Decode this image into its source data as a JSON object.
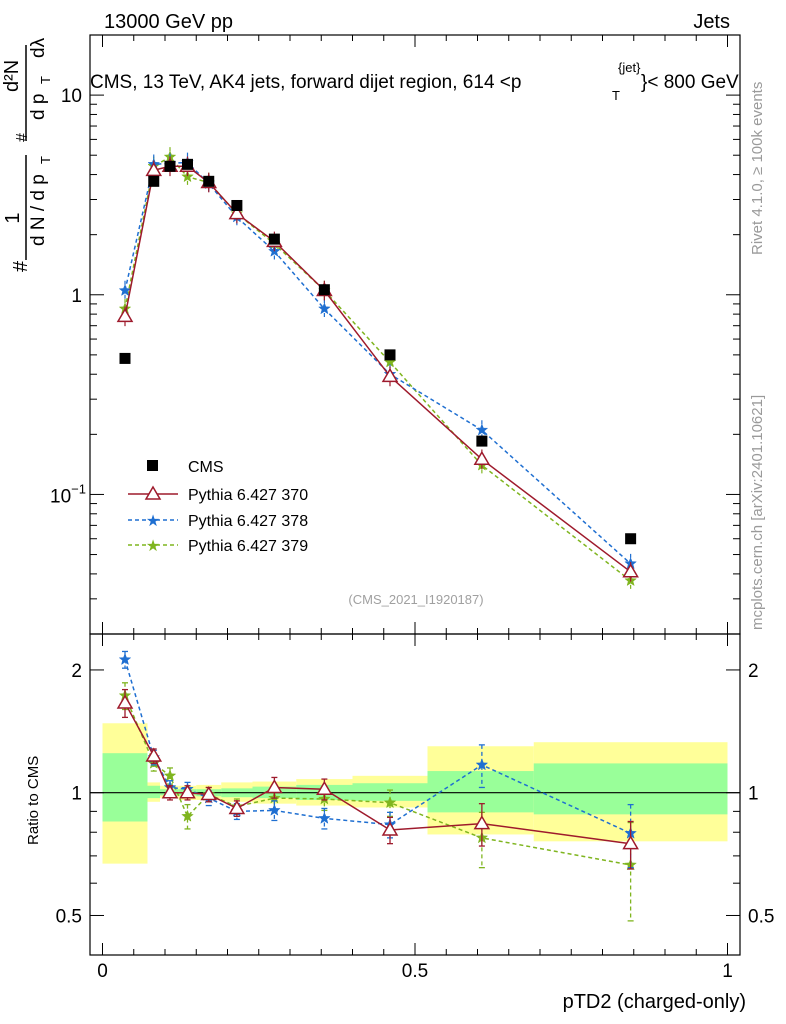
{
  "header": {
    "left": "13000 GeV pp",
    "right": "Jets",
    "title_main": "CMS, 13 TeV, AK4 jets, forward dijet region, 614 <p",
    "title_sup": "{jet}",
    "title_sub": "T",
    "title_end": "}< 800 GeV",
    "watermark": "(CMS_2021_I1920187)"
  },
  "side": {
    "rivet": "Rivet 4.1.0, ≥ 100k events",
    "mcplots": "mcplots.cern.ch [arXiv:2401.10621]"
  },
  "colors": {
    "data": "#000000",
    "p370": "#9e1a2c",
    "p378": "#1f6fd1",
    "p379": "#7fb51f",
    "band_inner": "#99ff99",
    "band_outer": "#ffff99"
  },
  "chart_data": [
    {
      "type": "scatter",
      "panel": "main",
      "yscale": "log",
      "xlim": [
        -0.02,
        1.02
      ],
      "ylim": [
        0.02,
        20
      ],
      "ylabel": "1/(dN/dpT) d²N/(dpT dλ)",
      "ylabel_pieces": {
        "frac1_num": "1",
        "frac1_den": "d N / d p",
        "frac1_sub": "T",
        "frac2_num": "d²N",
        "frac2_den": "d p",
        "frac2_sub": "T",
        "dlambda": "dλ",
        "hash": "#"
      },
      "yticks": [
        {
          "v": 0.1,
          "base": "10",
          "exp": "−1"
        },
        {
          "v": 1,
          "base": "1",
          "exp": ""
        },
        {
          "v": 10,
          "base": "10",
          "exp": ""
        }
      ],
      "series": [
        {
          "name": "CMS",
          "key": "data",
          "x": [
            0.036,
            0.082,
            0.108,
            0.136,
            0.17,
            0.215,
            0.275,
            0.355,
            0.46,
            0.607,
            0.845
          ],
          "y": [
            0.48,
            3.7,
            4.4,
            4.5,
            3.7,
            2.8,
            1.9,
            1.06,
            0.5,
            0.185,
            0.06
          ]
        },
        {
          "name": "Pythia 6.427 370",
          "key": "p370",
          "x": [
            0.036,
            0.082,
            0.108,
            0.136,
            0.17,
            0.215,
            0.275,
            0.355,
            0.46,
            0.607,
            0.845
          ],
          "y": [
            0.78,
            4.2,
            4.4,
            4.4,
            3.65,
            2.55,
            1.85,
            1.05,
            0.39,
            0.15,
            0.041
          ]
        },
        {
          "name": "Pythia 6.427 378",
          "key": "p378",
          "x": [
            0.036,
            0.082,
            0.108,
            0.136,
            0.17,
            0.215,
            0.275,
            0.355,
            0.46,
            0.607,
            0.845
          ],
          "y": [
            1.05,
            4.5,
            4.55,
            4.6,
            3.6,
            2.45,
            1.65,
            0.85,
            0.4,
            0.21,
            0.045
          ]
        },
        {
          "name": "Pythia 6.427 379",
          "key": "p379",
          "x": [
            0.036,
            0.082,
            0.108,
            0.136,
            0.17,
            0.215,
            0.275,
            0.355,
            0.46,
            0.607,
            0.845
          ],
          "y": [
            0.85,
            4.4,
            4.9,
            3.9,
            3.65,
            2.55,
            1.8,
            1.05,
            0.46,
            0.14,
            0.037
          ]
        }
      ],
      "legend": [
        "CMS",
        "Pythia 6.427 370",
        "Pythia 6.427 378",
        "Pythia 6.427 379"
      ]
    },
    {
      "type": "scatter",
      "panel": "ratio",
      "yscale": "log",
      "xlim": [
        -0.02,
        1.02
      ],
      "ylim": [
        0.4,
        2.45
      ],
      "ylabel": "Ratio to CMS",
      "xlabel": "pTD2 (charged-only)",
      "xticks": [
        {
          "v": 0,
          "label": "0"
        },
        {
          "v": 0.5,
          "label": "0.5"
        },
        {
          "v": 1,
          "label": "1"
        }
      ],
      "yticks": [
        {
          "v": 0.5,
          "label": "0.5"
        },
        {
          "v": 1,
          "label": "1"
        },
        {
          "v": 2,
          "label": "2"
        }
      ],
      "bins": [
        {
          "lo": 0.0,
          "hi": 0.072,
          "inner": [
            0.85,
            1.25
          ],
          "outer": [
            0.67,
            1.48
          ]
        },
        {
          "lo": 0.072,
          "hi": 0.092,
          "inner": [
            0.97,
            1.04
          ],
          "outer": [
            0.95,
            1.06
          ]
        },
        {
          "lo": 0.092,
          "hi": 0.122,
          "inner": [
            0.985,
            1.02
          ],
          "outer": [
            0.97,
            1.04
          ]
        },
        {
          "lo": 0.122,
          "hi": 0.15,
          "inner": [
            0.985,
            1.02
          ],
          "outer": [
            0.96,
            1.04
          ]
        },
        {
          "lo": 0.15,
          "hi": 0.19,
          "inner": [
            0.98,
            1.02
          ],
          "outer": [
            0.96,
            1.045
          ]
        },
        {
          "lo": 0.19,
          "hi": 0.24,
          "inner": [
            0.975,
            1.025
          ],
          "outer": [
            0.95,
            1.06
          ]
        },
        {
          "lo": 0.24,
          "hi": 0.31,
          "inner": [
            0.97,
            1.035
          ],
          "outer": [
            0.94,
            1.065
          ]
        },
        {
          "lo": 0.31,
          "hi": 0.4,
          "inner": [
            0.96,
            1.045
          ],
          "outer": [
            0.93,
            1.08
          ]
        },
        {
          "lo": 0.4,
          "hi": 0.52,
          "inner": [
            0.955,
            1.055
          ],
          "outer": [
            0.92,
            1.1
          ]
        },
        {
          "lo": 0.52,
          "hi": 0.69,
          "inner": [
            0.895,
            1.13
          ],
          "outer": [
            0.79,
            1.3
          ]
        },
        {
          "lo": 0.69,
          "hi": 1.0,
          "inner": [
            0.885,
            1.18
          ],
          "outer": [
            0.76,
            1.33
          ]
        }
      ],
      "series": [
        {
          "name": "Pythia 6.427 370",
          "key": "p370",
          "x": [
            0.036,
            0.082,
            0.108,
            0.136,
            0.17,
            0.215,
            0.275,
            0.355,
            0.46,
            0.607,
            0.845
          ],
          "y": [
            1.66,
            1.23,
            1.0,
            1.0,
            0.99,
            0.915,
            1.03,
            1.02,
            0.81,
            0.84,
            0.75
          ],
          "err": [
            0.13,
            0.05,
            0.04,
            0.04,
            0.04,
            0.04,
            0.06,
            0.06,
            0.06,
            0.1,
            0.1
          ]
        },
        {
          "name": "Pythia 6.427 378",
          "key": "p378",
          "x": [
            0.036,
            0.082,
            0.108,
            0.136,
            0.17,
            0.215,
            0.275,
            0.355,
            0.46,
            0.607,
            0.845
          ],
          "y": [
            2.12,
            1.22,
            1.03,
            1.02,
            0.97,
            0.9,
            0.905,
            0.865,
            0.835,
            1.17,
            0.795
          ],
          "err": [
            0.1,
            0.05,
            0.04,
            0.04,
            0.04,
            0.04,
            0.05,
            0.05,
            0.06,
            0.14,
            0.14
          ]
        },
        {
          "name": "Pythia 6.427 379",
          "key": "p379",
          "x": [
            0.036,
            0.082,
            0.108,
            0.136,
            0.17,
            0.215,
            0.275,
            0.355,
            0.46,
            0.607,
            0.845
          ],
          "y": [
            1.73,
            1.18,
            1.1,
            0.875,
            0.99,
            0.925,
            0.97,
            0.965,
            0.945,
            0.775,
            0.665
          ],
          "err": [
            0.13,
            0.05,
            0.05,
            0.06,
            0.04,
            0.04,
            0.06,
            0.06,
            0.07,
            0.12,
            0.18
          ]
        }
      ]
    }
  ]
}
